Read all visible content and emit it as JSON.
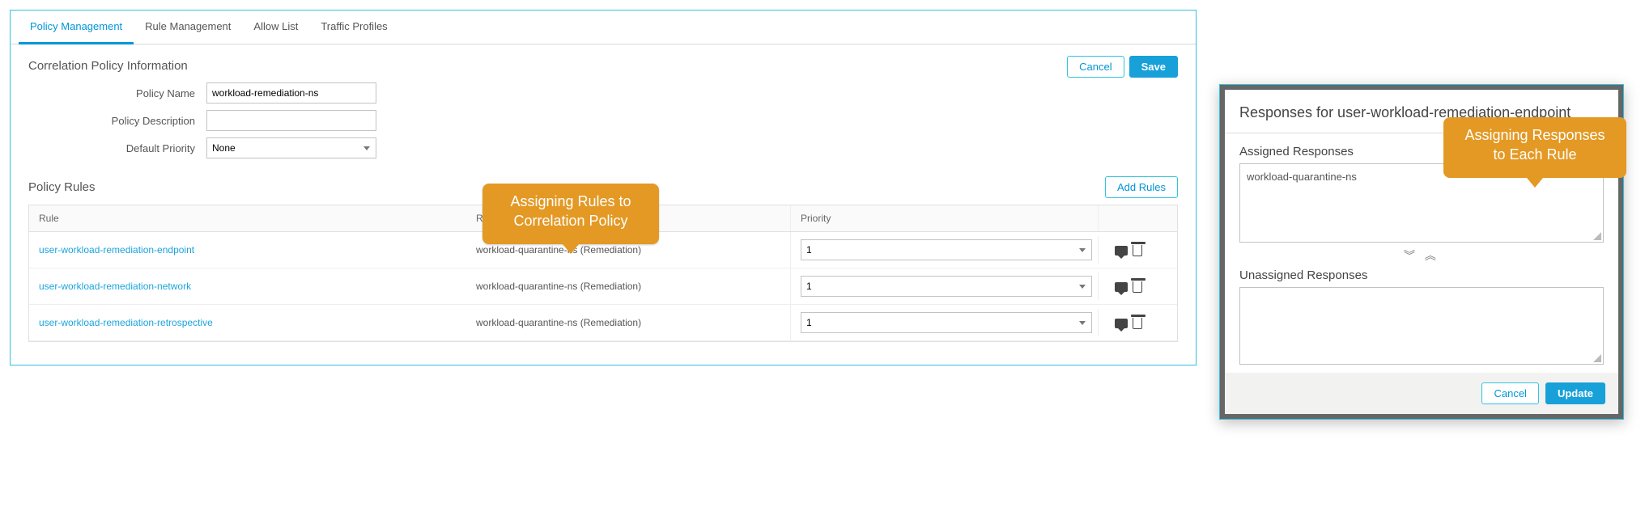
{
  "tabs": {
    "policy_management": "Policy Management",
    "rule_management": "Rule Management",
    "allow_list": "Allow List",
    "traffic_profiles": "Traffic Profiles"
  },
  "actions": {
    "cancel": "Cancel",
    "save": "Save",
    "add_rules": "Add Rules",
    "update": "Update"
  },
  "info": {
    "section_title": "Correlation Policy Information",
    "name_label": "Policy Name",
    "name_value": "workload-remediation-ns",
    "desc_label": "Policy Description",
    "desc_value": "",
    "priority_label": "Default Priority",
    "priority_value": "None"
  },
  "rules": {
    "title": "Policy Rules",
    "columns": {
      "rule": "Rule",
      "responses": "Responses",
      "priority": "Priority"
    },
    "rows": [
      {
        "rule": "user-workload-remediation-endpoint",
        "responses": "workload-quarantine-ns (Remediation)",
        "priority": "1"
      },
      {
        "rule": "user-workload-remediation-network",
        "responses": "workload-quarantine-ns (Remediation)",
        "priority": "1"
      },
      {
        "rule": "user-workload-remediation-retrospective",
        "responses": "workload-quarantine-ns (Remediation)",
        "priority": "1"
      }
    ]
  },
  "callouts": {
    "main_line1": "Assigning Rules to",
    "main_line2": "Correlation Policy",
    "dialog_line1": "Assigning Responses",
    "dialog_line2": "to Each Rule"
  },
  "dialog": {
    "title": "Responses for user-workload-remediation-endpoint",
    "assigned_title": "Assigned Responses",
    "assigned_items": [
      "workload-quarantine-ns"
    ],
    "unassigned_title": "Unassigned Responses",
    "unassigned_items": []
  },
  "colors": {
    "accent": "#18a0d9",
    "accent_border": "#2fc3e0",
    "link": "#1ba4dd",
    "callout": "#e39924",
    "border": "#c3c3c3",
    "text": "#555555"
  }
}
